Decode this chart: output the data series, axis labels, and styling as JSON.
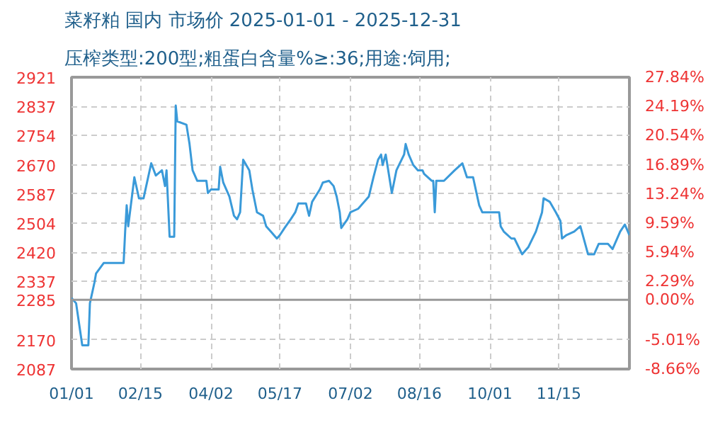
{
  "chart_data": {
    "type": "line",
    "title": "菜籽粕 国内 市场价 2025-01-01 - 2025-12-31",
    "subtitle": "压榨类型:200型;粗蛋白含量%≥:36;用途:饲用;",
    "x": [
      "2025-01-01",
      "2025-01-04",
      "2025-01-07",
      "2025-01-08",
      "2025-01-12",
      "2025-01-13",
      "2025-01-16",
      "2025-01-17",
      "2025-01-22",
      "2025-02-04",
      "2025-02-05",
      "2025-02-06",
      "2025-02-07",
      "2025-02-11",
      "2025-02-14",
      "2025-02-17",
      "2025-02-22",
      "2025-02-25",
      "2025-03-01",
      "2025-03-03",
      "2025-03-04",
      "2025-03-06",
      "2025-03-09",
      "2025-03-10",
      "2025-03-11",
      "2025-03-17",
      "2025-03-19",
      "2025-03-21",
      "2025-03-24",
      "2025-03-30",
      "2025-03-31",
      "2025-04-02",
      "2025-04-07",
      "2025-04-08",
      "2025-04-10",
      "2025-04-14",
      "2025-04-17",
      "2025-04-19",
      "2025-04-21",
      "2025-04-23",
      "2025-04-27",
      "2025-04-29",
      "2025-05-02",
      "2025-05-06",
      "2025-05-08",
      "2025-05-11",
      "2025-05-15",
      "2025-05-17",
      "2025-05-20",
      "2025-05-24",
      "2025-05-27",
      "2025-05-29",
      "2025-06-03",
      "2025-06-05",
      "2025-06-07",
      "2025-06-12",
      "2025-06-14",
      "2025-06-18",
      "2025-06-21",
      "2025-06-23",
      "2025-06-25",
      "2025-06-26",
      "2025-06-30",
      "2025-07-02",
      "2025-07-07",
      "2025-07-14",
      "2025-07-17",
      "2025-07-20",
      "2025-07-22",
      "2025-07-23",
      "2025-07-25",
      "2025-07-29",
      "2025-08-01",
      "2025-08-06",
      "2025-08-07",
      "2025-08-09",
      "2025-08-12",
      "2025-08-15",
      "2025-08-18",
      "2025-08-19",
      "2025-08-24",
      "2025-08-25",
      "2025-08-26",
      "2025-08-27",
      "2025-09-01",
      "2025-09-08",
      "2025-09-13",
      "2025-09-16",
      "2025-09-20",
      "2025-09-24",
      "2025-09-26",
      "2025-10-07",
      "2025-10-08",
      "2025-10-10",
      "2025-10-15",
      "2025-10-17",
      "2025-10-22",
      "2025-10-26",
      "2025-10-31",
      "2025-11-04",
      "2025-11-05",
      "2025-11-09",
      "2025-11-13",
      "2025-11-16",
      "2025-11-17",
      "2025-11-20",
      "2025-11-25",
      "2025-11-29",
      "2025-12-04",
      "2025-12-08",
      "2025-12-11",
      "2025-12-17",
      "2025-12-20",
      "2025-12-25",
      "2025-12-28",
      "2025-12-31"
    ],
    "series": [
      {
        "color": "#3a9ad9",
        "values": [
          2290,
          2275,
          2185,
          2155,
          2155,
          2275,
          2335,
          2360,
          2390,
          2390,
          2480,
          2555,
          2495,
          2635,
          2575,
          2575,
          2675,
          2640,
          2655,
          2610,
          2655,
          2465,
          2465,
          2840,
          2795,
          2785,
          2730,
          2655,
          2625,
          2625,
          2590,
          2600,
          2600,
          2665,
          2620,
          2580,
          2525,
          2515,
          2535,
          2685,
          2655,
          2600,
          2535,
          2525,
          2495,
          2480,
          2460,
          2470,
          2490,
          2515,
          2535,
          2560,
          2560,
          2525,
          2565,
          2600,
          2620,
          2625,
          2610,
          2580,
          2535,
          2490,
          2515,
          2535,
          2545,
          2580,
          2635,
          2685,
          2700,
          2670,
          2700,
          2590,
          2655,
          2700,
          2730,
          2700,
          2670,
          2655,
          2655,
          2645,
          2625,
          2625,
          2535,
          2625,
          2625,
          2655,
          2675,
          2635,
          2635,
          2555,
          2535,
          2535,
          2495,
          2480,
          2460,
          2460,
          2415,
          2435,
          2480,
          2535,
          2575,
          2565,
          2535,
          2510,
          2460,
          2470,
          2480,
          2495,
          2415,
          2415,
          2445,
          2445,
          2430,
          2480,
          2500,
          2470
        ]
      }
    ],
    "xlim": [
      "2025-01-01",
      "2025-12-31"
    ],
    "xticks": [
      {
        "value": "2025-01-01",
        "label": "01/01"
      },
      {
        "value": "2025-02-15",
        "label": "02/15"
      },
      {
        "value": "2025-04-02",
        "label": "04/02"
      },
      {
        "value": "2025-05-17",
        "label": "05/17"
      },
      {
        "value": "2025-07-02",
        "label": "07/02"
      },
      {
        "value": "2025-08-16",
        "label": "08/16"
      },
      {
        "value": "2025-10-01",
        "label": "10/01"
      },
      {
        "value": "2025-11-15",
        "label": "11/15"
      }
    ],
    "ylim": [
      2087,
      2921
    ],
    "yticks": [
      2087,
      2170,
      2285,
      2337,
      2420,
      2504,
      2587,
      2670,
      2754,
      2837,
      2921
    ],
    "y2lim": [
      -8.66,
      27.84
    ],
    "y2ticks": [
      {
        "value": -8.66,
        "label": "-8.66%"
      },
      {
        "value": -5.01,
        "label": "-5.01%"
      },
      {
        "value": 0,
        "label": "0.00%"
      },
      {
        "value": 2.29,
        "label": "2.29%"
      },
      {
        "value": 5.94,
        "label": "5.94%"
      },
      {
        "value": 9.59,
        "label": "9.59%"
      },
      {
        "value": 13.24,
        "label": "13.24%"
      },
      {
        "value": 16.89,
        "label": "16.89%"
      },
      {
        "value": 20.54,
        "label": "20.54%"
      },
      {
        "value": 24.19,
        "label": "24.19%"
      },
      {
        "value": 27.84,
        "label": "27.84%"
      }
    ],
    "ref_lines": [
      {
        "axis": "y",
        "value": 2285,
        "color": "#999999",
        "line_style": "solid"
      }
    ],
    "grid": true,
    "marker": "none",
    "line_style": "solid"
  }
}
